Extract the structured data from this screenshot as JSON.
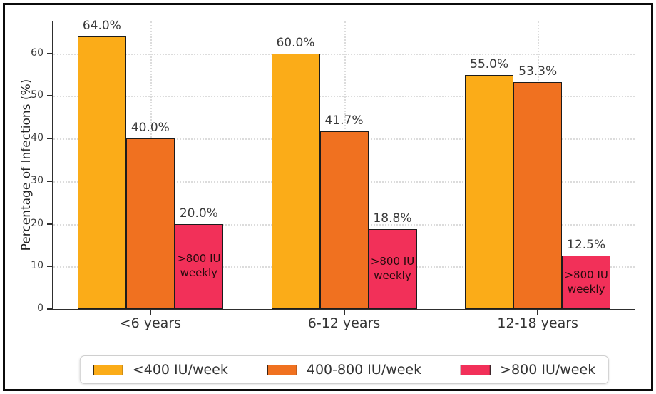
{
  "frame": {
    "background": "#ffffff",
    "border_color": "#0b0b0b"
  },
  "chart_data": {
    "type": "bar",
    "title": "",
    "categories": [
      "<6 years",
      "6-12 years",
      "12-18 years"
    ],
    "series": [
      {
        "name": "<400 IU/week",
        "color": "#FBAC18",
        "values": [
          64.0,
          60.0,
          55.0
        ],
        "value_labels": [
          "64.0%",
          "60.0%",
          "55.0%"
        ]
      },
      {
        "name": "400-800 IU/week",
        "color": "#F07120",
        "values": [
          40.0,
          41.7,
          53.3
        ],
        "value_labels": [
          "40.0%",
          "41.7%",
          "53.3%"
        ]
      },
      {
        "name": ">800 IU/week",
        "color": "#F23059",
        "values": [
          20.0,
          18.8,
          12.5
        ],
        "value_labels": [
          "20.0%",
          "18.8%",
          "12.5%"
        ],
        "in_bar_annotation": ">800 IU\nweekly"
      }
    ],
    "xlabel": "",
    "ylabel": "Percentage of Infections (%)",
    "yticks": [
      0,
      10,
      20,
      30,
      40,
      50,
      60
    ],
    "ylim": [
      0,
      67.5
    ],
    "grid": {
      "style": "dotted",
      "color": "#dcdcdc",
      "axes": "both"
    },
    "bar_edge_color": "#1c1c1c",
    "annotation_text_color": "#240a0c",
    "legend": {
      "position": "bottom-center",
      "entries": [
        "<400 IU/week",
        "400-800 IU/week",
        ">800 IU/week"
      ]
    }
  }
}
